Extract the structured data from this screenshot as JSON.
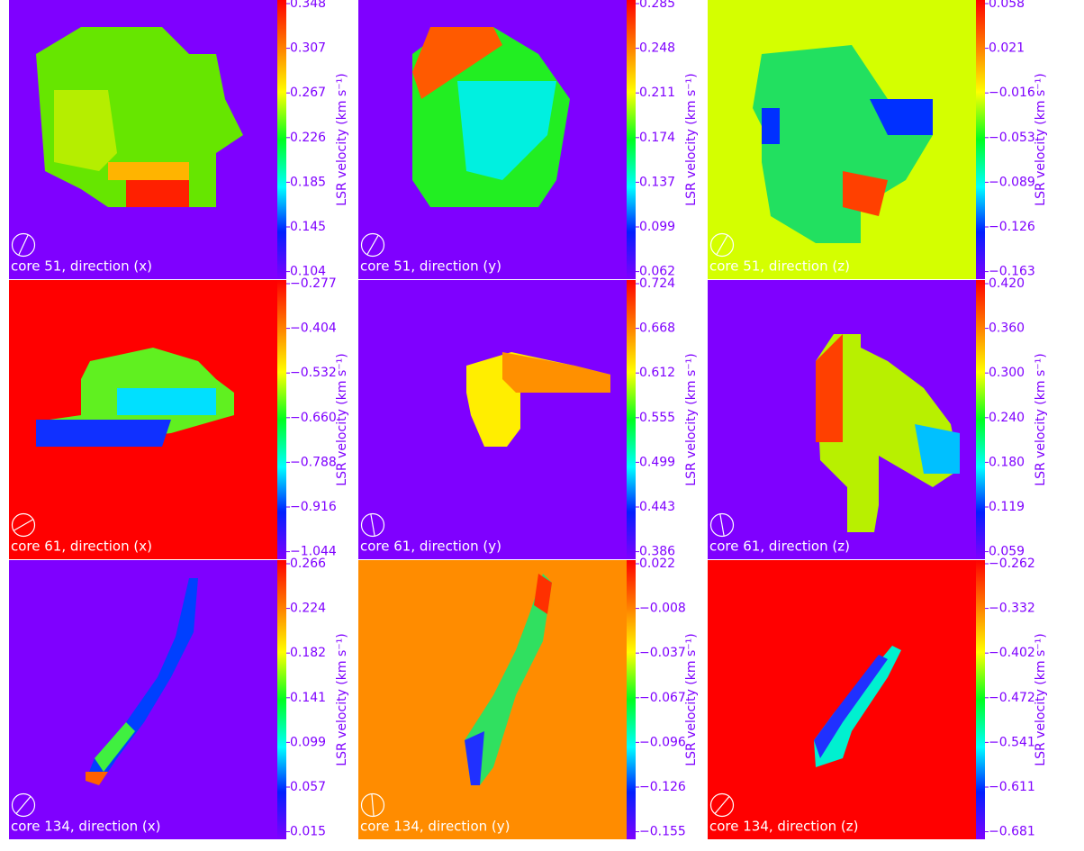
{
  "colorbar_label": "LSR velocity (km s⁻¹)",
  "panels": [
    {
      "label": "core 51, direction (x)",
      "ticks": [
        "0.348",
        "0.307",
        "0.267",
        "0.226",
        "0.185",
        "0.145",
        "0.104"
      ]
    },
    {
      "label": "core 51, direction (y)",
      "ticks": [
        "0.285",
        "0.248",
        "0.211",
        "0.174",
        "0.137",
        "0.099",
        "0.062"
      ]
    },
    {
      "label": "core 51, direction (z)",
      "ticks": [
        "0.058",
        "0.021",
        "−0.016",
        "−0.053",
        "−0.089",
        "−0.126",
        "−0.163"
      ]
    },
    {
      "label": "core 61, direction (x)",
      "ticks": [
        "−0.277",
        "−0.404",
        "−0.532",
        "−0.660",
        "−0.788",
        "−0.916",
        "−1.044"
      ]
    },
    {
      "label": "core 61, direction (y)",
      "ticks": [
        "0.724",
        "0.668",
        "0.612",
        "0.555",
        "0.499",
        "0.443",
        "0.386"
      ]
    },
    {
      "label": "core 61, direction (z)",
      "ticks": [
        "0.420",
        "0.360",
        "0.300",
        "0.240",
        "0.180",
        "0.119",
        "0.059"
      ]
    },
    {
      "label": "core 134, direction (x)",
      "ticks": [
        "0.266",
        "0.224",
        "0.182",
        "0.141",
        "0.099",
        "0.057",
        "0.015"
      ]
    },
    {
      "label": "core 134, direction (y)",
      "ticks": [
        "0.022",
        "−0.008",
        "−0.037",
        "−0.067",
        "−0.096",
        "−0.126",
        "−0.155"
      ]
    },
    {
      "label": "core 134, direction (z)",
      "ticks": [
        "−0.262",
        "−0.332",
        "−0.402",
        "−0.472",
        "−0.541",
        "−0.611",
        "−0.681"
      ]
    }
  ]
}
